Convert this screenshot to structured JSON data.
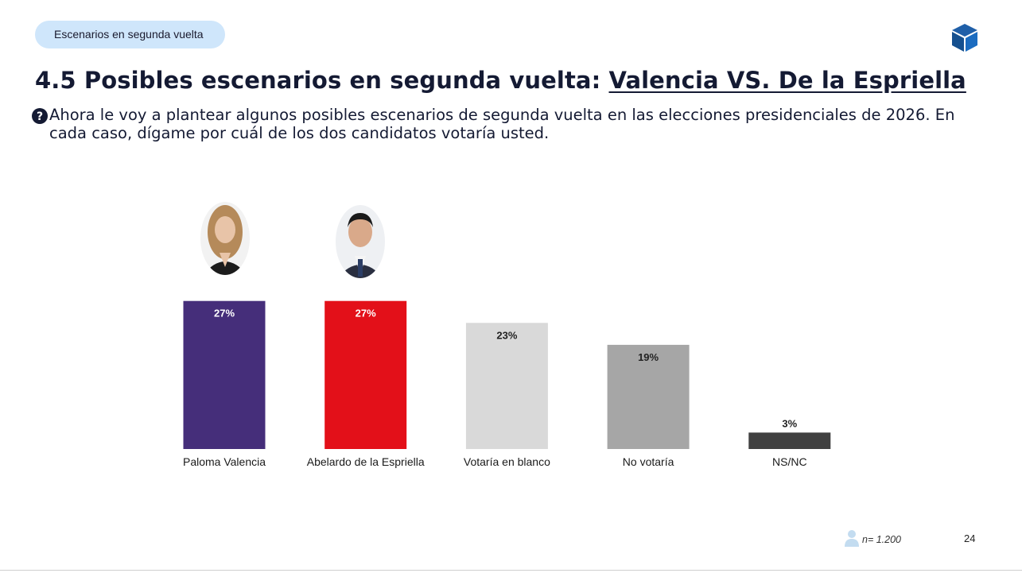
{
  "header": {
    "tag": "Escenarios en segunda vuelta",
    "title_main": "4.5 Posibles escenarios en segunda vuelta: ",
    "title_emphasis": "Valencia VS. De la Espriella",
    "question": "Ahora le voy a plantear algunos posibles escenarios de segunda vuelta en las elecciones presidenciales de 2026. En cada caso, dígame por cuál de los dos candidatos votaría usted.",
    "logo_icon": "cube-icon",
    "question_icon": "question-circle-icon"
  },
  "chart_data": {
    "type": "bar",
    "title": "",
    "xlabel": "",
    "ylabel": "",
    "ylim": [
      0,
      100
    ],
    "grid": false,
    "categories": [
      "Paloma Valencia",
      "Abelardo de la Espriella",
      "Votaría en blanco",
      "No votaría",
      "NS/NC"
    ],
    "values": [
      27,
      27,
      23,
      19,
      3
    ],
    "value_labels": [
      "27%",
      "27%",
      "23%",
      "19%",
      "3%"
    ],
    "colors": [
      "#452e7a",
      "#e31019",
      "#d9d9d9",
      "#a6a6a6",
      "#404040"
    ],
    "label_colors": [
      "#ffffff",
      "#ffffff",
      "#222222",
      "#222222",
      "#222222"
    ],
    "candidate_portraits": [
      "woman-portrait-icon",
      "man-portrait-icon"
    ]
  },
  "footer": {
    "sample": "n= 1.200",
    "sample_icon": "person-icon",
    "page_number": "24"
  }
}
